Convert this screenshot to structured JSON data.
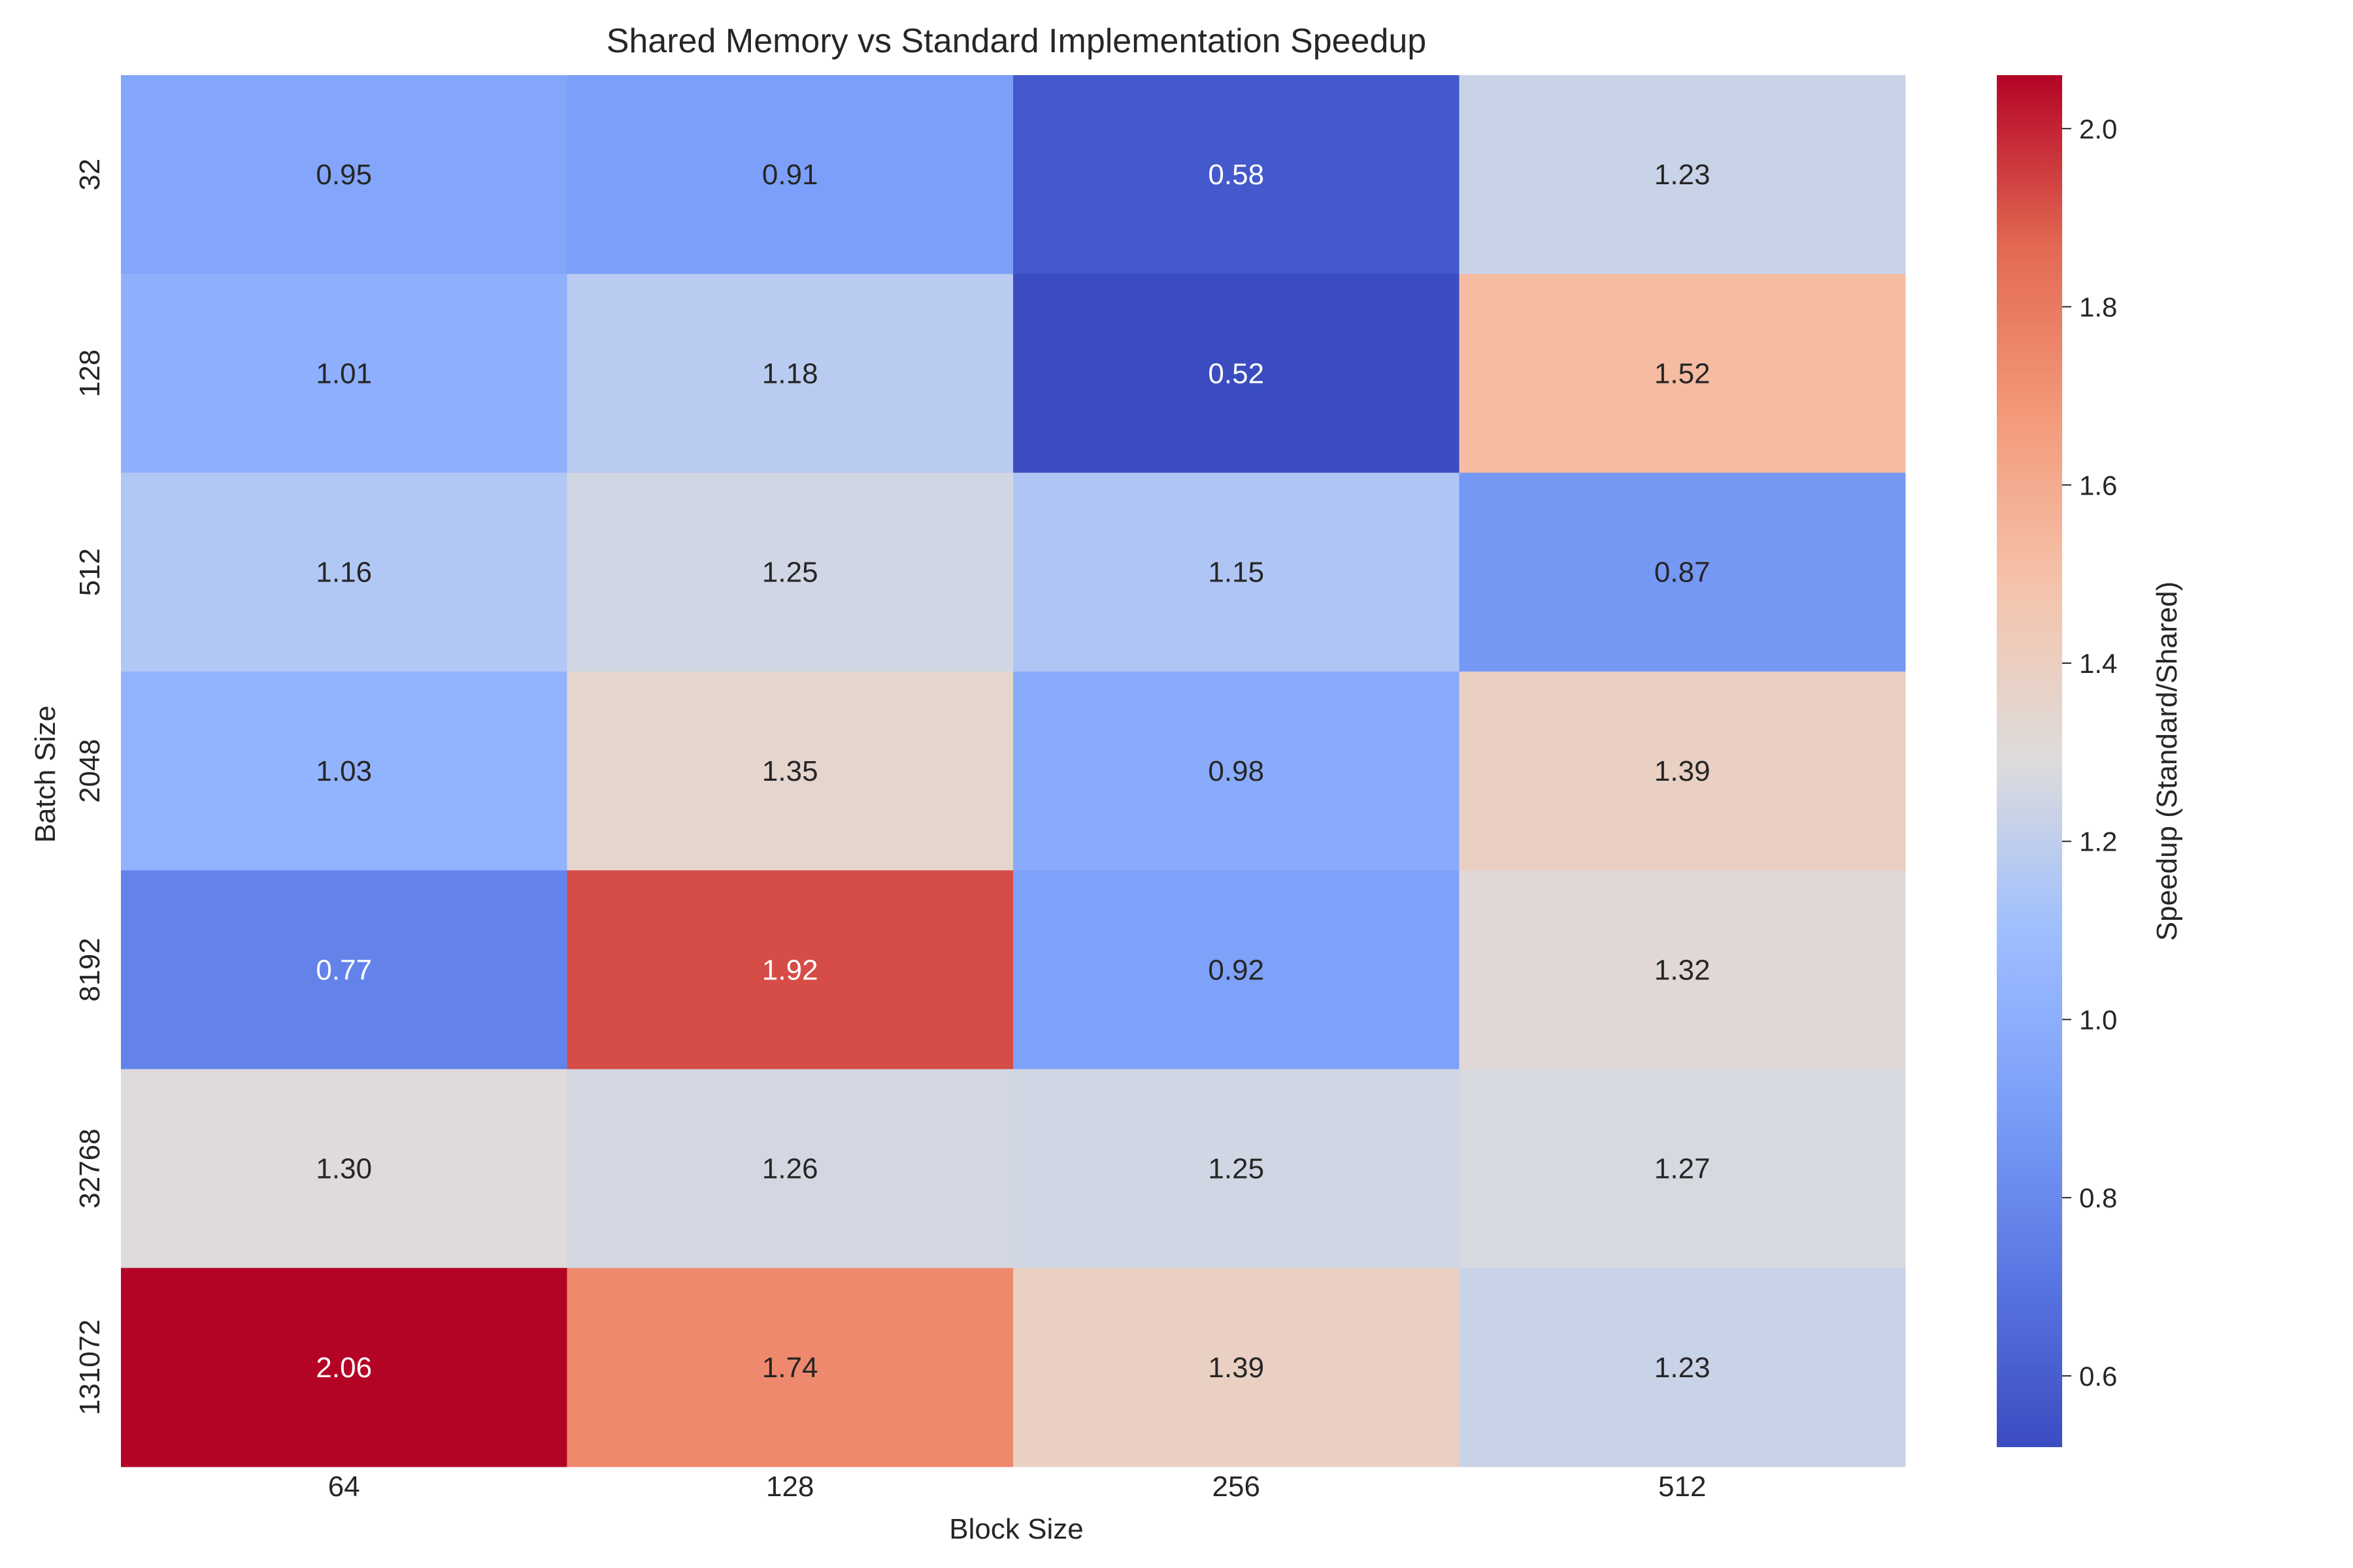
{
  "chart_data": {
    "type": "heatmap",
    "title": "Shared Memory vs Standard Implementation Speedup",
    "xlabel": "Block Size",
    "ylabel": "Batch Size",
    "x_categories": [
      "64",
      "128",
      "256",
      "512"
    ],
    "y_categories": [
      "32",
      "128",
      "512",
      "2048",
      "8192",
      "32768",
      "131072"
    ],
    "values": [
      [
        0.95,
        0.91,
        0.58,
        1.23
      ],
      [
        1.01,
        1.18,
        0.52,
        1.52
      ],
      [
        1.16,
        1.25,
        1.15,
        0.87
      ],
      [
        1.03,
        1.35,
        0.98,
        1.39
      ],
      [
        0.77,
        1.92,
        0.92,
        1.32
      ],
      [
        1.3,
        1.26,
        1.25,
        1.27
      ],
      [
        2.06,
        1.74,
        1.39,
        1.23
      ]
    ],
    "value_format": "0.00",
    "colormap": "coolwarm",
    "colorbar": {
      "label": "Speedup (Standard/Shared)",
      "min": 0.52,
      "max": 2.06,
      "ticks": [
        0.6,
        0.8,
        1.0,
        1.2,
        1.4,
        1.6,
        1.8,
        2.0
      ]
    }
  }
}
